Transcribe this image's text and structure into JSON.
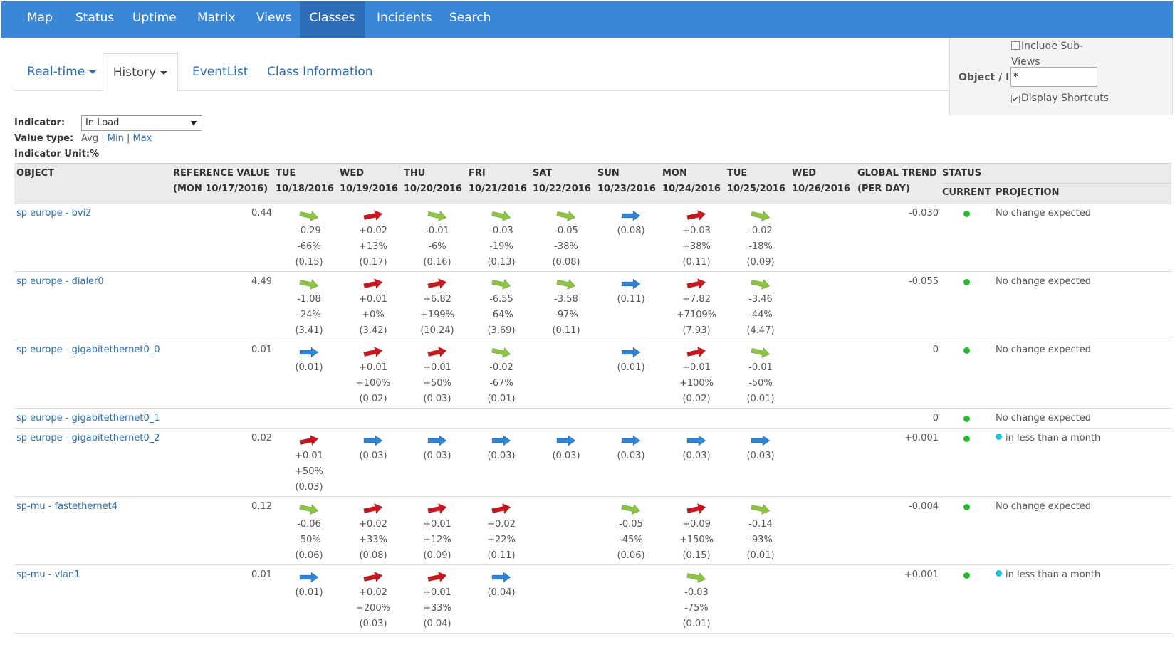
{
  "nav": {
    "items": [
      "Map",
      "Status",
      "Uptime",
      "Matrix",
      "Views",
      "Classes",
      "Incidents",
      "Search"
    ],
    "active": "Classes"
  },
  "subtabs": {
    "realtime": "Real-time",
    "history": "History",
    "eventlist": "EventList",
    "class_info": "Class Information"
  },
  "panel": {
    "include_sub_line1": "Include Sub-",
    "include_sub_line2": "Views",
    "object_ip_label": "Object / IP",
    "object_ip_value": "*",
    "display_shortcuts": "Display Shortcuts"
  },
  "indicator": {
    "label": "Indicator:",
    "selected": "In Load",
    "value_type_label": "Value type:",
    "avg": "Avg",
    "min": "Min",
    "max": "Max",
    "sep": "|",
    "unit_label": "Indicator Unit:%"
  },
  "table": {
    "headers": {
      "object": "OBJECT",
      "reference_line1": "REFERENCE VALUE",
      "reference_line2": "(MON 10/17/2016)",
      "global_line1": "GLOBAL TREND",
      "global_line2": "(PER DAY)",
      "status": "STATUS",
      "current": "CURRENT",
      "projection": "PROJECTION"
    },
    "days": [
      {
        "day": "TUE",
        "date": "10/18/2016"
      },
      {
        "day": "WED",
        "date": "10/19/2016"
      },
      {
        "day": "THU",
        "date": "10/20/2016"
      },
      {
        "day": "FRI",
        "date": "10/21/2016"
      },
      {
        "day": "SAT",
        "date": "10/22/2016"
      },
      {
        "day": "SUN",
        "date": "10/23/2016"
      },
      {
        "day": "MON",
        "date": "10/24/2016"
      },
      {
        "day": "TUE",
        "date": "10/25/2016"
      },
      {
        "day": "WED",
        "date": "10/26/2016"
      }
    ],
    "colors": {
      "down": "#8cc63f",
      "up": "#c9171e",
      "flat": "#2f86d8",
      "status_ok": "#22c02a",
      "projection_dot": "#1fc3d9"
    },
    "rows": [
      {
        "object": "sp europe - bvi2",
        "reference": "0.44",
        "trend": "-0.030",
        "projection": "No change expected",
        "projection_dot": false,
        "cells": [
          {
            "arrow": "down",
            "lines": [
              "-0.29",
              "-66%",
              "(0.15)"
            ]
          },
          {
            "arrow": "up",
            "lines": [
              "+0.02",
              "+13%",
              "(0.17)"
            ]
          },
          {
            "arrow": "down",
            "lines": [
              "-0.01",
              "-6%",
              "(0.16)"
            ]
          },
          {
            "arrow": "down",
            "lines": [
              "-0.03",
              "-19%",
              "(0.13)"
            ]
          },
          {
            "arrow": "down",
            "lines": [
              "-0.05",
              "-38%",
              "(0.08)"
            ]
          },
          {
            "arrow": "flat",
            "lines": [
              "(0.08)"
            ]
          },
          {
            "arrow": "up",
            "lines": [
              "+0.03",
              "+38%",
              "(0.11)"
            ]
          },
          {
            "arrow": "down",
            "lines": [
              "-0.02",
              "-18%",
              "(0.09)"
            ]
          },
          null
        ]
      },
      {
        "object": "sp europe - dialer0",
        "reference": "4.49",
        "trend": "-0.055",
        "projection": "No change expected",
        "projection_dot": false,
        "cells": [
          {
            "arrow": "down",
            "lines": [
              "-1.08",
              "-24%",
              "(3.41)"
            ]
          },
          {
            "arrow": "up",
            "lines": [
              "+0.01",
              "+0%",
              "(3.42)"
            ]
          },
          {
            "arrow": "up",
            "lines": [
              "+6.82",
              "+199%",
              "(10.24)"
            ]
          },
          {
            "arrow": "down",
            "lines": [
              "-6.55",
              "-64%",
              "(3.69)"
            ]
          },
          {
            "arrow": "down",
            "lines": [
              "-3.58",
              "-97%",
              "(0.11)"
            ]
          },
          {
            "arrow": "flat",
            "lines": [
              "(0.11)"
            ]
          },
          {
            "arrow": "up",
            "lines": [
              "+7.82",
              "+7109%",
              "(7.93)"
            ]
          },
          {
            "arrow": "down",
            "lines": [
              "-3.46",
              "-44%",
              "(4.47)"
            ]
          },
          null
        ]
      },
      {
        "object": "sp europe - gigabitethernet0_0",
        "reference": "0.01",
        "trend": "0",
        "projection": "No change expected",
        "projection_dot": false,
        "cells": [
          {
            "arrow": "flat",
            "lines": [
              "(0.01)"
            ]
          },
          {
            "arrow": "up",
            "lines": [
              "+0.01",
              "+100%",
              "(0.02)"
            ]
          },
          {
            "arrow": "up",
            "lines": [
              "+0.01",
              "+50%",
              "(0.03)"
            ]
          },
          {
            "arrow": "down",
            "lines": [
              "-0.02",
              "-67%",
              "(0.01)"
            ]
          },
          null,
          {
            "arrow": "flat",
            "lines": [
              "(0.01)"
            ]
          },
          {
            "arrow": "up",
            "lines": [
              "+0.01",
              "+100%",
              "(0.02)"
            ]
          },
          {
            "arrow": "down",
            "lines": [
              "-0.01",
              "-50%",
              "(0.01)"
            ]
          },
          null
        ]
      },
      {
        "object": "sp europe - gigabitethernet0_1",
        "reference": "",
        "trend": "0",
        "projection": "No change expected",
        "projection_dot": false,
        "cells": [
          null,
          null,
          null,
          null,
          null,
          null,
          null,
          null,
          null
        ]
      },
      {
        "object": "sp europe - gigabitethernet0_2",
        "reference": "0.02",
        "trend": "+0.001",
        "projection": "in less than a month",
        "projection_dot": true,
        "cells": [
          {
            "arrow": "up",
            "lines": [
              "+0.01",
              "+50%",
              "(0.03)"
            ]
          },
          {
            "arrow": "flat",
            "lines": [
              "(0.03)"
            ]
          },
          {
            "arrow": "flat",
            "lines": [
              "(0.03)"
            ]
          },
          {
            "arrow": "flat",
            "lines": [
              "(0.03)"
            ]
          },
          {
            "arrow": "flat",
            "lines": [
              "(0.03)"
            ]
          },
          {
            "arrow": "flat",
            "lines": [
              "(0.03)"
            ]
          },
          {
            "arrow": "flat",
            "lines": [
              "(0.03)"
            ]
          },
          {
            "arrow": "flat",
            "lines": [
              "(0.03)"
            ]
          },
          null
        ]
      },
      {
        "object": "sp-mu - fastethernet4",
        "reference": "0.12",
        "trend": "-0.004",
        "projection": "No change expected",
        "projection_dot": false,
        "cells": [
          {
            "arrow": "down",
            "lines": [
              "-0.06",
              "-50%",
              "(0.06)"
            ]
          },
          {
            "arrow": "up",
            "lines": [
              "+0.02",
              "+33%",
              "(0.08)"
            ]
          },
          {
            "arrow": "up",
            "lines": [
              "+0.01",
              "+12%",
              "(0.09)"
            ]
          },
          {
            "arrow": "up",
            "lines": [
              "+0.02",
              "+22%",
              "(0.11)"
            ]
          },
          null,
          {
            "arrow": "down",
            "lines": [
              "-0.05",
              "-45%",
              "(0.06)"
            ]
          },
          {
            "arrow": "up",
            "lines": [
              "+0.09",
              "+150%",
              "(0.15)"
            ]
          },
          {
            "arrow": "down",
            "lines": [
              "-0.14",
              "-93%",
              "(0.01)"
            ]
          },
          null
        ]
      },
      {
        "object": "sp-mu - vlan1",
        "reference": "0.01",
        "trend": "+0.001",
        "projection": "in less than a month",
        "projection_dot": true,
        "cells": [
          {
            "arrow": "flat",
            "lines": [
              "(0.01)"
            ]
          },
          {
            "arrow": "up",
            "lines": [
              "+0.02",
              "+200%",
              "(0.03)"
            ]
          },
          {
            "arrow": "up",
            "lines": [
              "+0.01",
              "+33%",
              "(0.04)"
            ]
          },
          {
            "arrow": "flat",
            "lines": [
              "(0.04)"
            ]
          },
          null,
          null,
          {
            "arrow": "down",
            "lines": [
              "-0.03",
              "-75%",
              "(0.01)"
            ]
          },
          null,
          null
        ]
      }
    ]
  }
}
